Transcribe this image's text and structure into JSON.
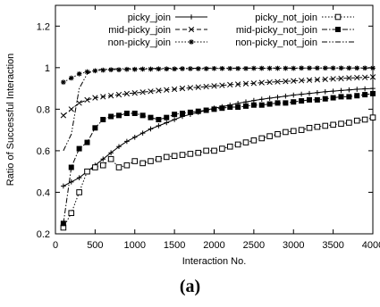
{
  "chart_data": {
    "type": "line",
    "title": "",
    "xlabel": "Interaction No.",
    "ylabel": "Ratio of Successful Interaction",
    "xlim": [
      0,
      4000
    ],
    "ylim": [
      0.2,
      1.3
    ],
    "xticks": [
      0,
      500,
      1000,
      1500,
      2000,
      2500,
      3000,
      3500,
      4000
    ],
    "yticks": [
      0.2,
      0.4,
      0.6,
      0.8,
      1,
      1.2
    ],
    "ytick_labels": [
      "0.2",
      "0.4",
      "0.6",
      "0.8",
      "1",
      "1.2"
    ],
    "grid": false,
    "legend": "top, two columns",
    "series": [
      {
        "name": "picky_join",
        "marker": "plus",
        "dash": "solid",
        "points": [
          [
            100,
            0.43
          ],
          [
            200,
            0.45
          ],
          [
            300,
            0.47
          ],
          [
            400,
            0.5
          ],
          [
            500,
            0.53
          ],
          [
            600,
            0.56
          ],
          [
            700,
            0.59
          ],
          [
            800,
            0.62
          ],
          [
            900,
            0.645
          ],
          [
            1000,
            0.665
          ],
          [
            1100,
            0.685
          ],
          [
            1200,
            0.705
          ],
          [
            1300,
            0.72
          ],
          [
            1400,
            0.735
          ],
          [
            1500,
            0.75
          ],
          [
            1600,
            0.765
          ],
          [
            1700,
            0.775
          ],
          [
            1800,
            0.785
          ],
          [
            1900,
            0.795
          ],
          [
            2000,
            0.805
          ],
          [
            2100,
            0.812
          ],
          [
            2200,
            0.82
          ],
          [
            2300,
            0.828
          ],
          [
            2400,
            0.835
          ],
          [
            2500,
            0.842
          ],
          [
            2600,
            0.848
          ],
          [
            2700,
            0.853
          ],
          [
            2800,
            0.858
          ],
          [
            2900,
            0.863
          ],
          [
            3000,
            0.868
          ],
          [
            3100,
            0.872
          ],
          [
            3200,
            0.876
          ],
          [
            3300,
            0.88
          ],
          [
            3400,
            0.884
          ],
          [
            3500,
            0.887
          ],
          [
            3600,
            0.89
          ],
          [
            3700,
            0.893
          ],
          [
            3800,
            0.896
          ],
          [
            3900,
            0.898
          ],
          [
            4000,
            0.9
          ]
        ]
      },
      {
        "name": "mid-picky_join",
        "marker": "x",
        "dash": "dashed",
        "points": [
          [
            100,
            0.77
          ],
          [
            200,
            0.8
          ],
          [
            300,
            0.83
          ],
          [
            400,
            0.845
          ],
          [
            500,
            0.855
          ],
          [
            600,
            0.86
          ],
          [
            700,
            0.865
          ],
          [
            800,
            0.87
          ],
          [
            900,
            0.875
          ],
          [
            1000,
            0.878
          ],
          [
            1100,
            0.882
          ],
          [
            1200,
            0.886
          ],
          [
            1300,
            0.89
          ],
          [
            1400,
            0.893
          ],
          [
            1500,
            0.896
          ],
          [
            1600,
            0.9
          ],
          [
            1700,
            0.903
          ],
          [
            1800,
            0.906
          ],
          [
            1900,
            0.909
          ],
          [
            2000,
            0.912
          ],
          [
            2100,
            0.915
          ],
          [
            2200,
            0.918
          ],
          [
            2300,
            0.92
          ],
          [
            2400,
            0.923
          ],
          [
            2500,
            0.925
          ],
          [
            2600,
            0.928
          ],
          [
            2700,
            0.93
          ],
          [
            2800,
            0.932
          ],
          [
            2900,
            0.934
          ],
          [
            3000,
            0.936
          ],
          [
            3100,
            0.938
          ],
          [
            3200,
            0.94
          ],
          [
            3300,
            0.942
          ],
          [
            3400,
            0.944
          ],
          [
            3500,
            0.946
          ],
          [
            3600,
            0.948
          ],
          [
            3700,
            0.95
          ],
          [
            3800,
            0.952
          ],
          [
            3900,
            0.953
          ],
          [
            4000,
            0.955
          ]
        ]
      },
      {
        "name": "non-picky_join",
        "marker": "star",
        "dash": "dotted",
        "points": [
          [
            100,
            0.93
          ],
          [
            200,
            0.95
          ],
          [
            300,
            0.97
          ],
          [
            400,
            0.98
          ],
          [
            500,
            0.985
          ],
          [
            600,
            0.988
          ],
          [
            700,
            0.99
          ],
          [
            800,
            0.99
          ],
          [
            900,
            0.992
          ],
          [
            1000,
            0.992
          ],
          [
            1100,
            0.993
          ],
          [
            1200,
            0.993
          ],
          [
            1300,
            0.994
          ],
          [
            1400,
            0.994
          ],
          [
            1500,
            0.994
          ],
          [
            1600,
            0.995
          ],
          [
            1700,
            0.995
          ],
          [
            1800,
            0.995
          ],
          [
            1900,
            0.995
          ],
          [
            2000,
            0.996
          ],
          [
            2100,
            0.996
          ],
          [
            2200,
            0.996
          ],
          [
            2300,
            0.996
          ],
          [
            2400,
            0.996
          ],
          [
            2500,
            0.997
          ],
          [
            2600,
            0.997
          ],
          [
            2700,
            0.997
          ],
          [
            2800,
            0.997
          ],
          [
            2900,
            0.997
          ],
          [
            3000,
            0.997
          ],
          [
            3100,
            0.998
          ],
          [
            3200,
            0.998
          ],
          [
            3300,
            0.998
          ],
          [
            3400,
            0.998
          ],
          [
            3500,
            0.998
          ],
          [
            3600,
            0.998
          ],
          [
            3700,
            0.998
          ],
          [
            3800,
            0.998
          ],
          [
            3900,
            0.998
          ],
          [
            4000,
            0.998
          ]
        ]
      },
      {
        "name": "picky_not_join",
        "marker": "open-square",
        "dash": "dotted",
        "points": [
          [
            100,
            0.23
          ],
          [
            200,
            0.3
          ],
          [
            300,
            0.4
          ],
          [
            400,
            0.5
          ],
          [
            500,
            0.52
          ],
          [
            600,
            0.53
          ],
          [
            700,
            0.56
          ],
          [
            800,
            0.52
          ],
          [
            900,
            0.53
          ],
          [
            1000,
            0.55
          ],
          [
            1100,
            0.54
          ],
          [
            1200,
            0.55
          ],
          [
            1300,
            0.56
          ],
          [
            1400,
            0.57
          ],
          [
            1500,
            0.575
          ],
          [
            1600,
            0.58
          ],
          [
            1700,
            0.585
          ],
          [
            1800,
            0.59
          ],
          [
            1900,
            0.6
          ],
          [
            2000,
            0.6
          ],
          [
            2100,
            0.61
          ],
          [
            2200,
            0.62
          ],
          [
            2300,
            0.63
          ],
          [
            2400,
            0.64
          ],
          [
            2500,
            0.65
          ],
          [
            2600,
            0.66
          ],
          [
            2700,
            0.67
          ],
          [
            2800,
            0.68
          ],
          [
            2900,
            0.69
          ],
          [
            3000,
            0.695
          ],
          [
            3100,
            0.7
          ],
          [
            3200,
            0.71
          ],
          [
            3300,
            0.715
          ],
          [
            3400,
            0.72
          ],
          [
            3500,
            0.725
          ],
          [
            3600,
            0.73
          ],
          [
            3700,
            0.735
          ],
          [
            3800,
            0.745
          ],
          [
            3900,
            0.75
          ],
          [
            4000,
            0.76
          ]
        ]
      },
      {
        "name": "mid-picky_not_join",
        "marker": "filled-square",
        "dash": "dashdot",
        "points": [
          [
            100,
            0.25
          ],
          [
            200,
            0.52
          ],
          [
            300,
            0.61
          ],
          [
            400,
            0.64
          ],
          [
            500,
            0.71
          ],
          [
            600,
            0.75
          ],
          [
            700,
            0.765
          ],
          [
            800,
            0.77
          ],
          [
            900,
            0.78
          ],
          [
            1000,
            0.78
          ],
          [
            1100,
            0.77
          ],
          [
            1200,
            0.76
          ],
          [
            1300,
            0.75
          ],
          [
            1400,
            0.76
          ],
          [
            1500,
            0.775
          ],
          [
            1600,
            0.78
          ],
          [
            1700,
            0.785
          ],
          [
            1800,
            0.79
          ],
          [
            1900,
            0.795
          ],
          [
            2000,
            0.8
          ],
          [
            2100,
            0.805
          ],
          [
            2200,
            0.81
          ],
          [
            2300,
            0.81
          ],
          [
            2400,
            0.815
          ],
          [
            2500,
            0.82
          ],
          [
            2600,
            0.82
          ],
          [
            2700,
            0.825
          ],
          [
            2800,
            0.83
          ],
          [
            2900,
            0.83
          ],
          [
            3000,
            0.835
          ],
          [
            3100,
            0.84
          ],
          [
            3200,
            0.845
          ],
          [
            3300,
            0.845
          ],
          [
            3400,
            0.85
          ],
          [
            3500,
            0.855
          ],
          [
            3600,
            0.86
          ],
          [
            3700,
            0.86
          ],
          [
            3800,
            0.865
          ],
          [
            3900,
            0.87
          ],
          [
            4000,
            0.875
          ]
        ]
      },
      {
        "name": "non-picky_not_join",
        "marker": "none",
        "dash": "dashdotdot",
        "points": [
          [
            100,
            0.6
          ],
          [
            200,
            0.68
          ],
          [
            300,
            0.9
          ],
          [
            400,
            0.97
          ],
          [
            500,
            0.99
          ],
          [
            800,
            0.995
          ],
          [
            1500,
            0.997
          ],
          [
            2500,
            0.998
          ],
          [
            4000,
            0.999
          ]
        ]
      }
    ]
  },
  "caption": "(a)"
}
